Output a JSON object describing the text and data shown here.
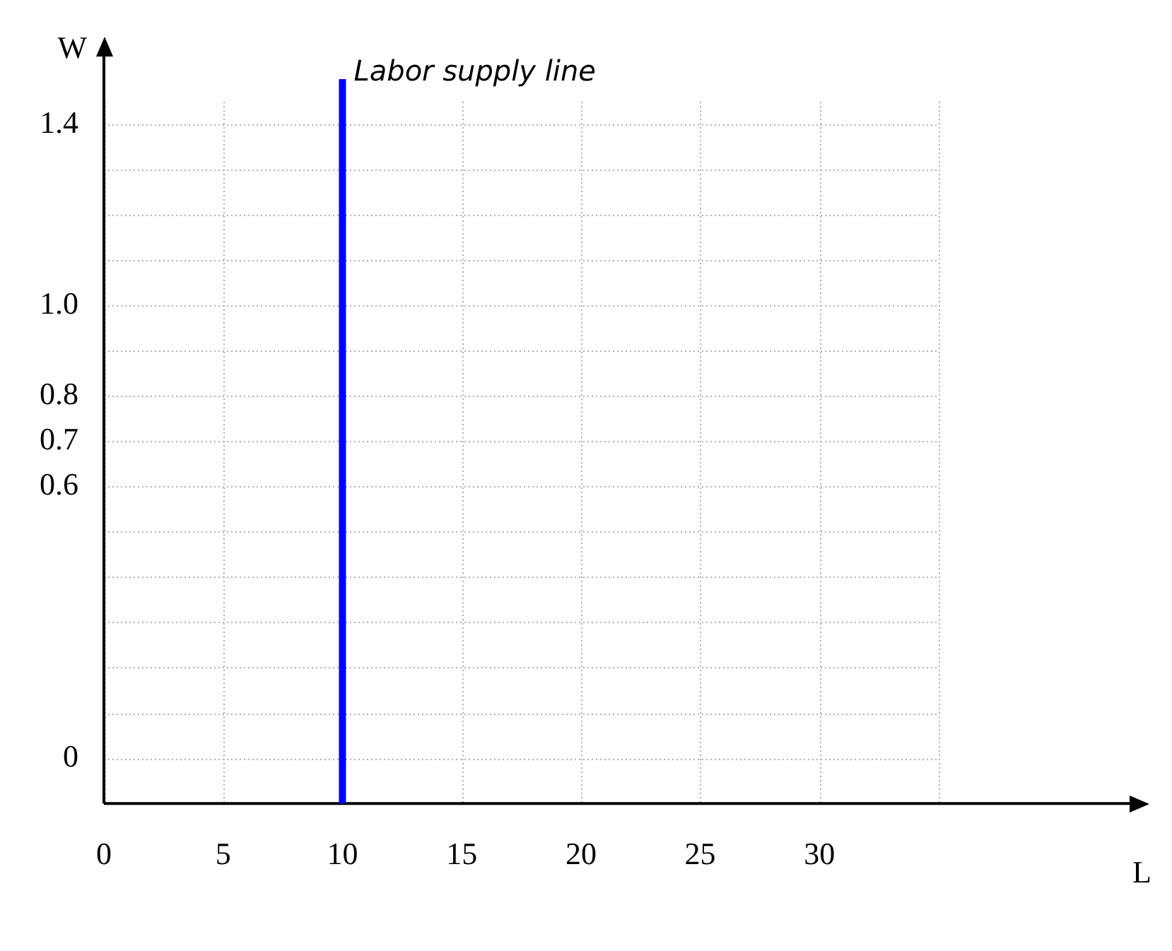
{
  "chart_data": {
    "type": "line",
    "xlabel": "L",
    "ylabel": "W",
    "x": [
      10,
      10
    ],
    "series": [
      {
        "color": "#0000ff",
        "values": [
          -0.1,
          1.5
        ]
      }
    ],
    "xlim": [
      0,
      43
    ],
    "ylim": [
      -0.1,
      1.55
    ],
    "xticks": [
      0,
      5,
      10,
      15,
      20,
      25,
      30,
      {
        "value": 35,
        "label": null
      }
    ],
    "yticks": [
      {
        "value": 0,
        "label": "0"
      },
      {
        "value": 0.1,
        "label": null
      },
      {
        "value": 0.2,
        "label": null
      },
      {
        "value": 0.3,
        "label": null
      },
      {
        "value": 0.4,
        "label": null
      },
      {
        "value": 0.5,
        "label": null
      },
      {
        "value": 0.6,
        "label": "0.6"
      },
      {
        "value": 0.7,
        "label": "0.7"
      },
      {
        "value": 0.8,
        "label": "0.8"
      },
      {
        "value": 0.9,
        "label": null
      },
      {
        "value": 1.0,
        "label": "1.0"
      },
      {
        "value": 1.1,
        "label": null
      },
      {
        "value": 1.2,
        "label": null
      },
      {
        "value": 1.3,
        "label": null
      },
      {
        "value": 1.4,
        "label": "1.4"
      }
    ],
    "annotations": [
      {
        "text": "Labor supply line",
        "x": 10,
        "y": 1.5
      }
    ],
    "grid": true,
    "legend": false,
    "marker": "none",
    "line_style": "solid"
  }
}
